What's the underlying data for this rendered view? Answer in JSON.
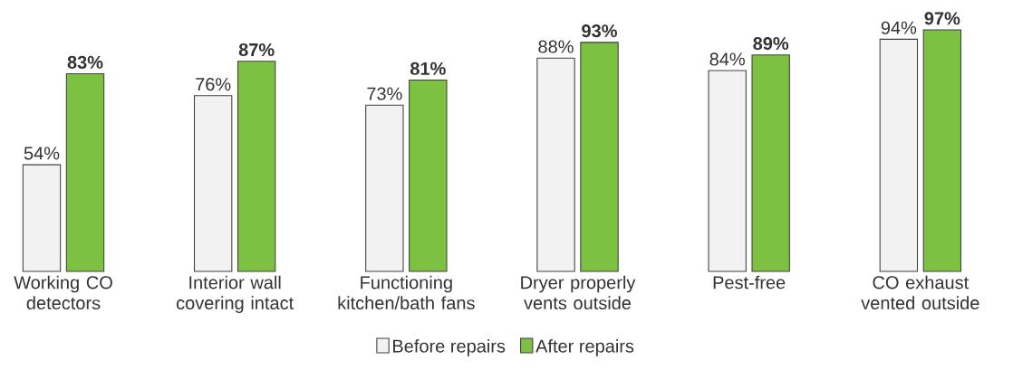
{
  "chart_data": {
    "type": "bar",
    "categories": [
      "Working CO detectors",
      "Interior wall covering intact",
      "Functioning kitchen/bath fans",
      "Dryer properly vents outside",
      "Pest-free",
      "CO exhaust vented outside"
    ],
    "series": [
      {
        "name": "Before repairs",
        "color": "#f2f2f2",
        "values": [
          54,
          76,
          73,
          88,
          84,
          94
        ],
        "value_labels": [
          "54%",
          "76%",
          "73%",
          "88%",
          "84%",
          "94%"
        ]
      },
      {
        "name": "After repairs",
        "color": "#7dc142",
        "values": [
          83,
          87,
          81,
          93,
          89,
          97
        ],
        "value_labels": [
          "83%",
          "87%",
          "81%",
          "93%",
          "89%",
          "97%"
        ]
      }
    ],
    "ylim": [
      20,
      97
    ],
    "legend": "bottom",
    "tick_labels": "x"
  }
}
